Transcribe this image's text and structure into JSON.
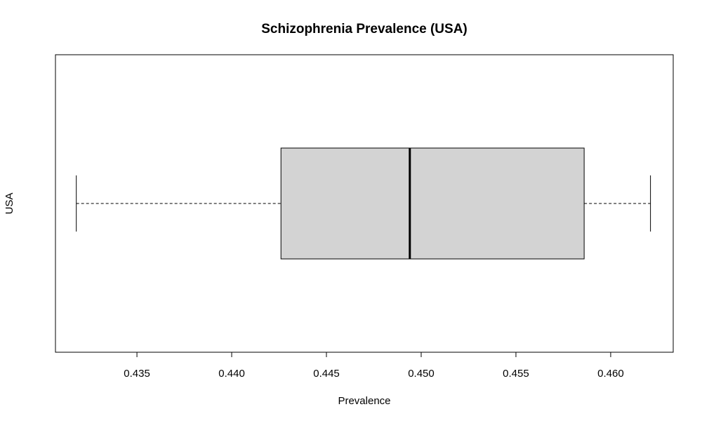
{
  "chart_data": {
    "type": "boxplot",
    "orientation": "horizontal",
    "title": "Schizophrenia Prevalence (USA)",
    "xlabel": "Prevalence",
    "ylabel": "USA",
    "xlim": [
      0.4307,
      0.4633
    ],
    "x_ticks": [
      0.435,
      0.44,
      0.445,
      0.45,
      0.455,
      0.46
    ],
    "x_tick_labels": [
      "0.435",
      "0.440",
      "0.445",
      "0.450",
      "0.455",
      "0.460"
    ],
    "grid": false,
    "legend": "none",
    "series": [
      {
        "min": 0.4318,
        "q1": 0.4426,
        "median": 0.4494,
        "q3": 0.4586,
        "max": 0.4621
      }
    ],
    "colors": {
      "box_fill": "#d3d3d3",
      "stroke": "#000000"
    }
  }
}
